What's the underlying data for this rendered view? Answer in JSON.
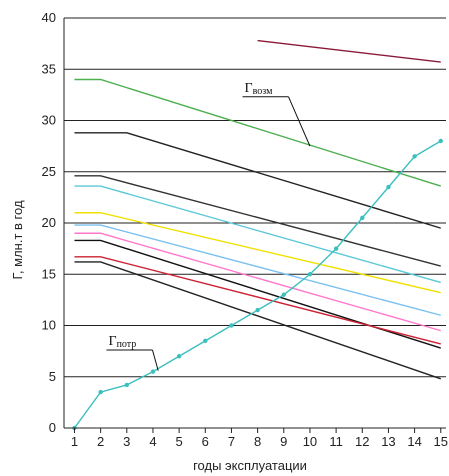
{
  "chart_data": {
    "type": "line",
    "xlabel": "годы эксплуатации",
    "ylabel": "Г, млн.т в год",
    "xlim": [
      0.6,
      15.2
    ],
    "ylim": [
      0,
      40
    ],
    "x_ticks": [
      1,
      2,
      3,
      4,
      5,
      6,
      7,
      8,
      9,
      10,
      11,
      12,
      13,
      14,
      15
    ],
    "y_ticks": [
      0,
      5,
      10,
      15,
      20,
      25,
      30,
      35,
      40
    ],
    "grid": "horizontal",
    "series": [
      {
        "color": "#8b1a3a",
        "x": [
          8,
          15
        ],
        "y": [
          37.8,
          35.7
        ]
      },
      {
        "color": "#4caf50",
        "x": [
          1,
          2,
          15
        ],
        "y": [
          34,
          34,
          23.6
        ]
      },
      {
        "color": "#222222",
        "x": [
          1,
          3,
          15
        ],
        "y": [
          28.8,
          28.8,
          19.5
        ]
      },
      {
        "color": "#333333",
        "x": [
          1,
          2,
          15
        ],
        "y": [
          24.6,
          24.6,
          15.8
        ]
      },
      {
        "color": "#5bc8d8",
        "x": [
          1,
          2,
          15
        ],
        "y": [
          23.6,
          23.6,
          14.2
        ]
      },
      {
        "color": "#f0e000",
        "x": [
          1,
          2,
          15
        ],
        "y": [
          21,
          21,
          13.2
        ]
      },
      {
        "color": "#7ac0f0",
        "x": [
          1,
          2,
          15
        ],
        "y": [
          19.8,
          19.8,
          11
        ]
      },
      {
        "color": "#ff77cc",
        "x": [
          1,
          2,
          15
        ],
        "y": [
          19,
          19,
          9.5
        ]
      },
      {
        "color": "#111111",
        "x": [
          1,
          2,
          15
        ],
        "y": [
          18.3,
          18.3,
          7.8
        ]
      },
      {
        "color": "#cc2233",
        "x": [
          1,
          2,
          15
        ],
        "y": [
          16.7,
          16.7,
          8.2
        ]
      },
      {
        "color": "#222222",
        "x": [
          1,
          2,
          15
        ],
        "y": [
          16.2,
          16.2,
          4.8
        ]
      },
      {
        "color": "#3bbfbf",
        "markers": true,
        "x": [
          1,
          2,
          3,
          4,
          5,
          6,
          7,
          8,
          9,
          10,
          11,
          12,
          13,
          14,
          15
        ],
        "y": [
          0,
          3.5,
          4.2,
          5.5,
          7,
          8.5,
          10,
          11.5,
          13,
          15,
          17.5,
          20.5,
          23.5,
          26.5,
          28
        ]
      }
    ],
    "annotations": [
      {
        "main": "Г",
        "sub": "возм",
        "x": 7.5,
        "y": 32.8,
        "arrow_to": [
          10,
          27.5
        ]
      },
      {
        "main": "Г",
        "sub": "потр",
        "x": 2.3,
        "y": 8.1,
        "arrow_to": [
          4.2,
          5.6
        ]
      }
    ]
  }
}
